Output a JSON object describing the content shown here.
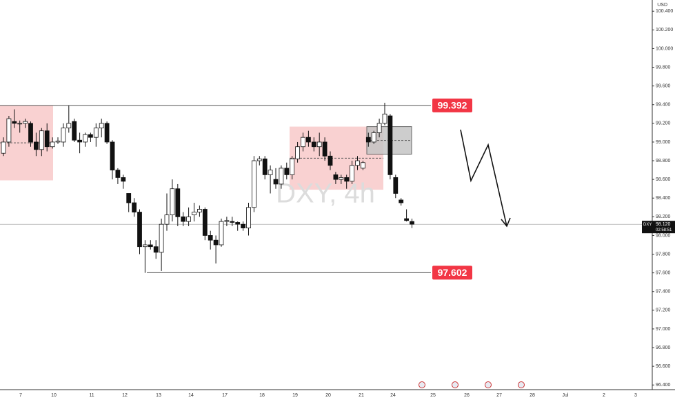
{
  "chart_data": {
    "type": "candlestick",
    "symbol": "DXY",
    "title": "DXY, 4h",
    "currency": "USD",
    "last_price": {
      "value": 98.12,
      "label": "98.120"
    },
    "countdown": "02:58:51",
    "levels": [
      {
        "value": 99.392,
        "label": "99.392"
      },
      {
        "value": 97.602,
        "label": "97.602"
      }
    ],
    "zones": [
      {
        "top": 99.392,
        "bottom": 98.59,
        "color": "#f8c9c9"
      },
      {
        "top": 99.165,
        "bottom": 98.49,
        "color": "#f8c9c9"
      },
      {
        "top": 99.165,
        "bottom": 98.87,
        "color": "#c4c4c4"
      }
    ],
    "ylim": [
      96.35,
      100.52
    ],
    "yticks": [
      {
        "value": 100.4,
        "label": "100.400"
      },
      {
        "value": 100.2,
        "label": "100.200"
      },
      {
        "value": 100,
        "label": "100.000"
      },
      {
        "value": 99.8,
        "label": "99.800"
      },
      {
        "value": 99.6,
        "label": "99.600"
      },
      {
        "value": 99.4,
        "label": "99.400"
      },
      {
        "value": 99.2,
        "label": "99.200"
      },
      {
        "value": 99,
        "label": "99.000"
      },
      {
        "value": 98.8,
        "label": "98.800"
      },
      {
        "value": 98.6,
        "label": "98.600"
      },
      {
        "value": 98.4,
        "label": "98.400"
      },
      {
        "value": 98.2,
        "label": "98.200"
      },
      {
        "value": 98,
        "label": "98.000"
      },
      {
        "value": 97.8,
        "label": "97.800"
      },
      {
        "value": 97.6,
        "label": "97.600"
      },
      {
        "value": 97.4,
        "label": "97.400"
      },
      {
        "value": 97.2,
        "label": "97.200"
      },
      {
        "value": 97,
        "label": "97.000"
      },
      {
        "value": 96.8,
        "label": "96.800"
      },
      {
        "value": 96.6,
        "label": "96.600"
      },
      {
        "value": 96.4,
        "label": "96.400"
      }
    ],
    "xtick_labels": [
      "7",
      "10",
      "11",
      "12",
      "13",
      "14",
      "17",
      "18",
      "19",
      "20",
      "21",
      "24",
      "25",
      "26",
      "27",
      "28",
      "Jul",
      "2",
      "3"
    ],
    "open": [
      98.88,
      99.0,
      99.22,
      99.2,
      99.2,
      99.2,
      99.0,
      98.92,
      99.12,
      98.95,
      99.0,
      99.0,
      99.15,
      99.22,
      99.02,
      99.0,
      99.08,
      99.05,
      99.15,
      99.2,
      99.0,
      98.7,
      98.62,
      98.45,
      98.35,
      98.25,
      97.88,
      97.9,
      97.88,
      97.82,
      98.12,
      98.22,
      98.5,
      98.2,
      98.15,
      98.22,
      98.25,
      98.28,
      98.0,
      97.95,
      97.9,
      98.15,
      98.15,
      98.14,
      98.12,
      98.08,
      98.3,
      98.8,
      98.82,
      98.65,
      98.6,
      98.55,
      98.72,
      98.65,
      98.82,
      98.95,
      99.05,
      99.0,
      98.95,
      99.0,
      98.85,
      98.65,
      98.6,
      98.62,
      98.58,
      98.75,
      98.72,
      99.05,
      99.0,
      99.1,
      99.2,
      99.28,
      98.62,
      98.38,
      98.18,
      98.15
    ],
    "high": [
      99.05,
      99.28,
      99.35,
      99.23,
      99.25,
      99.22,
      99.1,
      99.15,
      99.2,
      99.05,
      99.05,
      99.2,
      99.39,
      99.25,
      99.1,
      99.1,
      99.1,
      99.2,
      99.25,
      99.22,
      99.02,
      98.72,
      98.65,
      98.45,
      98.4,
      98.28,
      97.95,
      97.95,
      97.95,
      98.18,
      98.45,
      98.6,
      98.55,
      98.25,
      98.3,
      98.35,
      98.32,
      98.3,
      98.05,
      98.0,
      98.18,
      98.2,
      98.2,
      98.15,
      98.15,
      98.35,
      98.85,
      98.85,
      98.85,
      98.75,
      98.72,
      98.75,
      98.78,
      98.85,
      99.0,
      99.1,
      99.12,
      99.05,
      99.1,
      99.05,
      98.9,
      98.68,
      98.65,
      98.65,
      98.8,
      98.85,
      98.8,
      99.1,
      99.12,
      99.25,
      99.42,
      99.3,
      98.65,
      98.4,
      98.28,
      98.18
    ],
    "low": [
      98.85,
      98.95,
      99.15,
      99.1,
      99.15,
      98.95,
      98.85,
      98.85,
      98.9,
      98.93,
      98.98,
      98.95,
      99.1,
      99.0,
      98.88,
      98.95,
      99.0,
      98.95,
      99.05,
      98.98,
      98.6,
      98.55,
      98.5,
      98.25,
      98.2,
      97.8,
      97.6,
      97.85,
      97.75,
      97.62,
      98.05,
      98.15,
      98.1,
      98.1,
      98.1,
      98.15,
      98.2,
      97.95,
      97.85,
      97.7,
      97.88,
      98.1,
      98.1,
      98.05,
      98.05,
      98.0,
      98.25,
      98.75,
      98.6,
      98.45,
      98.5,
      98.5,
      98.6,
      98.6,
      98.78,
      98.9,
      98.95,
      98.9,
      98.85,
      98.8,
      98.7,
      98.55,
      98.55,
      98.5,
      98.55,
      98.7,
      98.7,
      98.95,
      98.98,
      99.05,
      99.18,
      98.6,
      98.4,
      98.32,
      98.15,
      98.08
    ],
    "close": [
      99.0,
      99.25,
      99.2,
      99.2,
      99.22,
      99.0,
      98.92,
      99.12,
      98.95,
      99.0,
      99.01,
      99.15,
      99.2,
      99.02,
      99.0,
      99.08,
      99.05,
      99.15,
      99.2,
      99.0,
      98.7,
      98.62,
      98.58,
      98.35,
      98.25,
      97.88,
      97.9,
      97.88,
      97.82,
      98.12,
      98.22,
      98.5,
      98.2,
      98.15,
      98.2,
      98.25,
      98.28,
      98.0,
      97.95,
      97.9,
      98.15,
      98.16,
      98.14,
      98.12,
      98.08,
      98.3,
      98.8,
      98.82,
      98.65,
      98.7,
      98.55,
      98.72,
      98.65,
      98.82,
      98.95,
      99.05,
      99.0,
      98.95,
      99.0,
      98.85,
      98.75,
      98.6,
      98.62,
      98.58,
      98.75,
      98.8,
      98.78,
      99.0,
      99.1,
      99.2,
      99.3,
      98.65,
      98.45,
      98.35,
      98.16,
      98.12
    ]
  }
}
